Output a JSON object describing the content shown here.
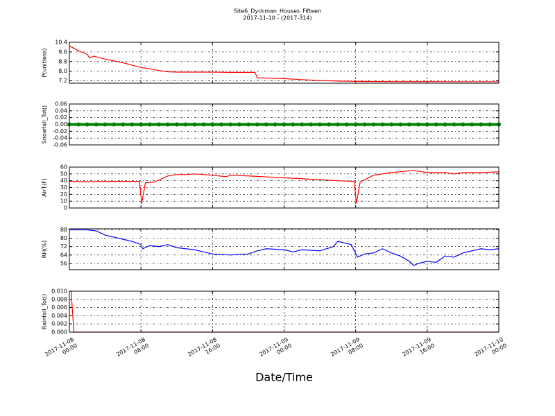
{
  "title": "Site6_Dyckman_Houses_Fifteen",
  "subtitle": "2017-11-10 - (2017-314)",
  "chart_data": [
    {
      "type": "line",
      "ylabel": "P(unitless)",
      "color": "#ff0000",
      "grid": true,
      "x": [
        "2017-11-08 00:00",
        "2017-11-08 00:30",
        "2017-11-08 01:00",
        "2017-11-08 02:00",
        "2017-11-08 02:15",
        "2017-11-08 02:45",
        "2017-11-08 04:00",
        "2017-11-08 05:00",
        "2017-11-08 06:00",
        "2017-11-08 07:00",
        "2017-11-08 08:00",
        "2017-11-08 09:00",
        "2017-11-08 10:00",
        "2017-11-08 11:00",
        "2017-11-08 12:00",
        "2017-11-08 14:00",
        "2017-11-08 16:00",
        "2017-11-08 18:00",
        "2017-11-08 20:00",
        "2017-11-08 20:45",
        "2017-11-08 21:00",
        "2017-11-08 22:00",
        "2017-11-09 00:00",
        "2017-11-09 02:00",
        "2017-11-09 04:00",
        "2017-11-09 06:00",
        "2017-11-09 08:00",
        "2017-11-09 12:00",
        "2017-11-09 16:00",
        "2017-11-09 20:00",
        "2017-11-10 00:00"
      ],
      "values": [
        10.1,
        9.9,
        9.7,
        9.4,
        9.1,
        9.25,
        9.0,
        8.85,
        8.7,
        8.5,
        8.3,
        8.2,
        8.05,
        7.95,
        7.92,
        7.92,
        7.92,
        7.9,
        7.9,
        7.9,
        7.45,
        7.42,
        7.38,
        7.3,
        7.22,
        7.18,
        7.15,
        7.13,
        7.13,
        7.12,
        7.12
      ],
      "ylim": [
        7.0,
        10.4
      ],
      "yticks": [
        7.2,
        {
          "value": 8.0,
          "label": "8.0"
        },
        8.8,
        9.6,
        10.4
      ],
      "xlim": [
        "2017-11-08 00:00",
        "2017-11-10 00:00"
      ],
      "xticks": [
        "2017-11-08 00:00",
        "2017-11-08 08:00",
        "2017-11-08 16:00",
        "2017-11-09 00:00",
        "2017-11-09 08:00",
        "2017-11-09 16:00",
        "2017-11-10 00:00"
      ]
    },
    {
      "type": "scatter",
      "ylabel": "Snowfall_Tot()",
      "color": "#008000",
      "grid": true,
      "x": [
        "2017-11-08 00:00",
        "2017-11-08 01:00",
        "2017-11-08 02:00",
        "2017-11-08 03:00",
        "2017-11-08 04:00",
        "2017-11-08 05:00",
        "2017-11-08 06:00",
        "2017-11-08 07:00",
        "2017-11-08 08:00",
        "2017-11-08 09:00",
        "2017-11-08 10:00",
        "2017-11-08 11:00",
        "2017-11-08 12:00",
        "2017-11-08 13:00",
        "2017-11-08 14:00",
        "2017-11-08 15:00",
        "2017-11-08 16:00",
        "2017-11-08 17:00",
        "2017-11-08 18:00",
        "2017-11-08 19:00",
        "2017-11-08 20:00",
        "2017-11-08 21:00",
        "2017-11-08 22:00",
        "2017-11-08 23:00",
        "2017-11-09 00:00",
        "2017-11-09 01:00",
        "2017-11-09 02:00",
        "2017-11-09 03:00",
        "2017-11-09 04:00",
        "2017-11-09 05:00",
        "2017-11-09 06:00",
        "2017-11-09 07:00",
        "2017-11-09 08:00",
        "2017-11-09 09:00",
        "2017-11-09 10:00",
        "2017-11-09 11:00",
        "2017-11-09 12:00",
        "2017-11-09 13:00",
        "2017-11-09 14:00",
        "2017-11-09 15:00",
        "2017-11-09 16:00",
        "2017-11-09 17:00",
        "2017-11-09 18:00",
        "2017-11-09 19:00",
        "2017-11-09 20:00",
        "2017-11-09 21:00",
        "2017-11-09 22:00",
        "2017-11-09 23:00",
        "2017-11-10 00:00"
      ],
      "values": [
        0,
        0,
        0,
        0,
        0,
        0,
        0,
        0,
        0,
        0,
        0,
        0,
        0,
        0,
        0,
        0,
        0,
        0,
        0,
        0,
        0,
        0,
        0,
        0,
        0,
        0,
        0,
        0,
        0,
        0,
        0,
        0,
        0,
        0,
        0,
        0,
        0,
        0,
        0,
        0,
        0,
        0,
        0,
        0,
        0,
        0,
        0,
        0,
        0
      ],
      "ylim": [
        -0.06,
        0.06
      ],
      "yticks": [
        -0.06,
        -0.04,
        -0.02,
        {
          "value": 0,
          "label": "0.00"
        },
        0.02,
        0.04,
        0.06
      ],
      "xlim": [
        "2017-11-08 00:00",
        "2017-11-10 00:00"
      ],
      "xticks": [
        "2017-11-08 00:00",
        "2017-11-08 08:00",
        "2017-11-08 16:00",
        "2017-11-09 00:00",
        "2017-11-09 08:00",
        "2017-11-09 16:00",
        "2017-11-10 00:00"
      ]
    },
    {
      "type": "line",
      "ylabel": "AirT(F)",
      "color": "#ff0000",
      "grid": true,
      "x": [
        "2017-11-08 00:00",
        "2017-11-08 02:00",
        "2017-11-08 05:00",
        "2017-11-08 07:50",
        "2017-11-08 08:05",
        "2017-11-08 08:30",
        "2017-11-08 09:30",
        "2017-11-08 11:00",
        "2017-11-08 12:00",
        "2017-11-08 13:00",
        "2017-11-08 14:00",
        "2017-11-08 15:00",
        "2017-11-08 16:00",
        "2017-11-08 17:30",
        "2017-11-08 18:00",
        "2017-11-08 20:00",
        "2017-11-08 23:00",
        "2017-11-09 02:00",
        "2017-11-09 06:00",
        "2017-11-09 07:50",
        "2017-11-09 08:05",
        "2017-11-09 08:30",
        "2017-11-09 10:00",
        "2017-11-09 12:00",
        "2017-11-09 14:30",
        "2017-11-09 16:00",
        "2017-11-09 18:00",
        "2017-11-09 19:00",
        "2017-11-09 20:00",
        "2017-11-09 22:00",
        "2017-11-10 00:00"
      ],
      "values": [
        39,
        38.5,
        39,
        39,
        7,
        37,
        38,
        47,
        49,
        49,
        50,
        49,
        48,
        46,
        48,
        47,
        45,
        43,
        40,
        39,
        7,
        38,
        48,
        52,
        55,
        52,
        52,
        50,
        52,
        52,
        53
      ],
      "ylim": [
        0,
        60
      ],
      "yticks": [
        0,
        10,
        20,
        30,
        40,
        50,
        60
      ],
      "xlim": [
        "2017-11-08 00:00",
        "2017-11-10 00:00"
      ],
      "xticks": [
        "2017-11-08 00:00",
        "2017-11-08 08:00",
        "2017-11-08 16:00",
        "2017-11-09 00:00",
        "2017-11-09 08:00",
        "2017-11-09 16:00",
        "2017-11-10 00:00"
      ]
    },
    {
      "type": "line",
      "ylabel": "RH(%)",
      "color": "#0000ff",
      "grid": true,
      "x": [
        "2017-11-08 00:00",
        "2017-11-08 02:00",
        "2017-11-08 03:00",
        "2017-11-08 04:00",
        "2017-11-08 06:00",
        "2017-11-08 07:00",
        "2017-11-08 08:00",
        "2017-11-08 08:12",
        "2017-11-08 09:00",
        "2017-11-08 10:00",
        "2017-11-08 11:00",
        "2017-11-08 12:00",
        "2017-11-08 14:00",
        "2017-11-08 15:00",
        "2017-11-08 16:00",
        "2017-11-08 18:00",
        "2017-11-08 20:00",
        "2017-11-08 21:00",
        "2017-11-08 22:00",
        "2017-11-09 00:00",
        "2017-11-09 01:00",
        "2017-11-09 02:00",
        "2017-11-09 04:00",
        "2017-11-09 05:30",
        "2017-11-09 06:00",
        "2017-11-09 07:30",
        "2017-11-09 08:12",
        "2017-11-09 09:00",
        "2017-11-09 10:00",
        "2017-11-09 11:00",
        "2017-11-09 12:00",
        "2017-11-09 13:00",
        "2017-11-09 14:00",
        "2017-11-09 14:30",
        "2017-11-09 15:00",
        "2017-11-09 16:00",
        "2017-11-09 17:00",
        "2017-11-09 18:00",
        "2017-11-09 19:00",
        "2017-11-09 20:00",
        "2017-11-09 22:00",
        "2017-11-09 23:00",
        "2017-11-10 00:00"
      ],
      "values": [
        88,
        88,
        87,
        83,
        79,
        77,
        74,
        70,
        73,
        72,
        74,
        71,
        69,
        67,
        65,
        64,
        65,
        68,
        70,
        69,
        67,
        69,
        68,
        72,
        77,
        74,
        62,
        65,
        66,
        70,
        66,
        63,
        58,
        54,
        56,
        58,
        57,
        63,
        62,
        66,
        70,
        69,
        70
      ],
      "ylim": [
        50,
        89
      ],
      "yticks": [
        56,
        64,
        72,
        80,
        88
      ],
      "xlim": [
        "2017-11-08 00:00",
        "2017-11-10 00:00"
      ],
      "xticks": [
        "2017-11-08 00:00",
        "2017-11-08 08:00",
        "2017-11-08 16:00",
        "2017-11-09 00:00",
        "2017-11-09 08:00",
        "2017-11-09 16:00",
        "2017-11-10 00:00"
      ]
    },
    {
      "type": "line",
      "ylabel": "Rainfall_Tot()",
      "xlabel": "Date/Time",
      "color": "#ff0000",
      "grid": true,
      "x": [
        "2017-11-08 00:00",
        "2017-11-08 00:12",
        "2017-11-08 00:30",
        "2017-11-10 00:00"
      ],
      "values": [
        0.01,
        0.01,
        0,
        0
      ],
      "ylim": [
        0,
        0.01
      ],
      "yticks": [
        {
          "value": 0,
          "label": "0.000"
        },
        0.002,
        0.004,
        0.006,
        0.008,
        {
          "value": 0.01,
          "label": "0.010"
        }
      ],
      "xlim": [
        "2017-11-08 00:00",
        "2017-11-10 00:00"
      ],
      "xticks": [
        {
          "value": "2017-11-08 00:00",
          "label": "2017-11-08\n00:00"
        },
        {
          "value": "2017-11-08 08:00",
          "label": "2017-11-08\n08:00"
        },
        {
          "value": "2017-11-08 16:00",
          "label": "2017-11-08\n16:00"
        },
        {
          "value": "2017-11-09 00:00",
          "label": "2017-11-09\n00:00"
        },
        {
          "value": "2017-11-09 08:00",
          "label": "2017-11-09\n08:00"
        },
        {
          "value": "2017-11-09 16:00",
          "label": "2017-11-09\n16:00"
        },
        {
          "value": "2017-11-10 00:00",
          "label": "2017-11-10\n00:00"
        }
      ]
    }
  ]
}
